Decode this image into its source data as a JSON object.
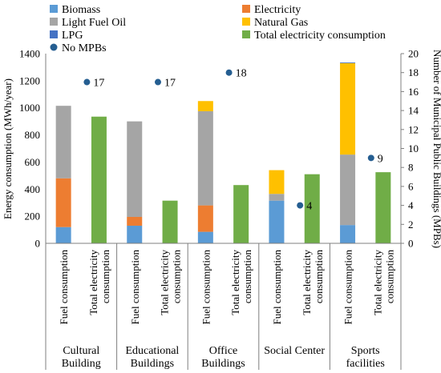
{
  "chart_data": {
    "type": "bar",
    "stacked": true,
    "title": "",
    "ylabel": "Energy consumption (MWh/year)",
    "y2label": "Number of Municipal Public Buildings (MPBs)",
    "ylim": [
      0,
      1400
    ],
    "y2lim": [
      0,
      20
    ],
    "yticks": [
      "0",
      "200",
      "400",
      "600",
      "800",
      "1000",
      "1200",
      "1400"
    ],
    "y2ticks": [
      "0",
      "2",
      "4",
      "6",
      "8",
      "10",
      "12",
      "14",
      "16",
      "18",
      "20"
    ],
    "legend_position": "top",
    "series": [
      {
        "name": "Biomass",
        "color": "#5B9BD5",
        "legend_marker": "square"
      },
      {
        "name": "Electricity",
        "color": "#ED7D31",
        "legend_marker": "square"
      },
      {
        "name": "Light Fuel Oil",
        "color": "#A5A5A5",
        "legend_marker": "square"
      },
      {
        "name": "Natural Gas",
        "color": "#FFC000",
        "legend_marker": "square"
      },
      {
        "name": "LPG",
        "color": "#4472C4",
        "legend_marker": "square"
      },
      {
        "name": "Total electricity consumption",
        "color": "#70AD47",
        "legend_marker": "square"
      },
      {
        "name": "No MPBs",
        "color": "#255E91",
        "legend_marker": "circle"
      }
    ],
    "groups": [
      {
        "label_lines": [
          "Cultural",
          "Building"
        ],
        "bars": [
          {
            "label_lines": [
              "Fuel consumption"
            ],
            "segments": {
              "Biomass": 120,
              "Electricity": 360,
              "Light Fuel Oil": 535,
              "Natural Gas": 0,
              "LPG": 0
            }
          },
          {
            "label_lines": [
              "Total electricity",
              "consumption"
            ],
            "segments": {
              "Total electricity consumption": 935
            }
          }
        ],
        "mpbs": 17,
        "mpbs_label": "17"
      },
      {
        "label_lines": [
          "Educational",
          "Buildings"
        ],
        "bars": [
          {
            "label_lines": [
              "Fuel consumption"
            ],
            "segments": {
              "Biomass": 130,
              "Electricity": 65,
              "Light Fuel Oil": 705,
              "Natural Gas": 0,
              "LPG": 0
            }
          },
          {
            "label_lines": [
              "Total electricity",
              "consumption"
            ],
            "segments": {
              "Total electricity consumption": 315
            }
          }
        ],
        "mpbs": 17,
        "mpbs_label": "17"
      },
      {
        "label_lines": [
          "Office",
          "Buildings"
        ],
        "bars": [
          {
            "label_lines": [
              "Fuel consumption"
            ],
            "segments": {
              "Biomass": 85,
              "Electricity": 195,
              "Light Fuel Oil": 695,
              "Natural Gas": 75,
              "LPG": 0
            }
          },
          {
            "label_lines": [
              "Total electricity",
              "consumption"
            ],
            "segments": {
              "Total electricity consumption": 430
            }
          }
        ],
        "mpbs": 18,
        "mpbs_label": "18"
      },
      {
        "label_lines": [
          "Social Center"
        ],
        "bars": [
          {
            "label_lines": [
              "Fuel consumption"
            ],
            "segments": {
              "Biomass": 315,
              "Electricity": 0,
              "Light Fuel Oil": 50,
              "Natural Gas": 175,
              "LPG": 0
            }
          },
          {
            "label_lines": [
              "Total electricity",
              "consumption"
            ],
            "segments": {
              "Total electricity consumption": 510
            }
          }
        ],
        "mpbs": 4,
        "mpbs_label": "4"
      },
      {
        "label_lines": [
          "Sports",
          "facilities"
        ],
        "bars": [
          {
            "label_lines": [
              "Fuel consumption"
            ],
            "segments": {
              "Biomass": 135,
              "Electricity": 0,
              "Light Fuel Oil": 520,
              "Natural Gas": 675,
              "LPG": 5
            }
          },
          {
            "label_lines": [
              "Total electricity",
              "consumption"
            ],
            "segments": {
              "Total electricity consumption": 525
            }
          }
        ],
        "mpbs": 9,
        "mpbs_label": "9"
      }
    ]
  }
}
